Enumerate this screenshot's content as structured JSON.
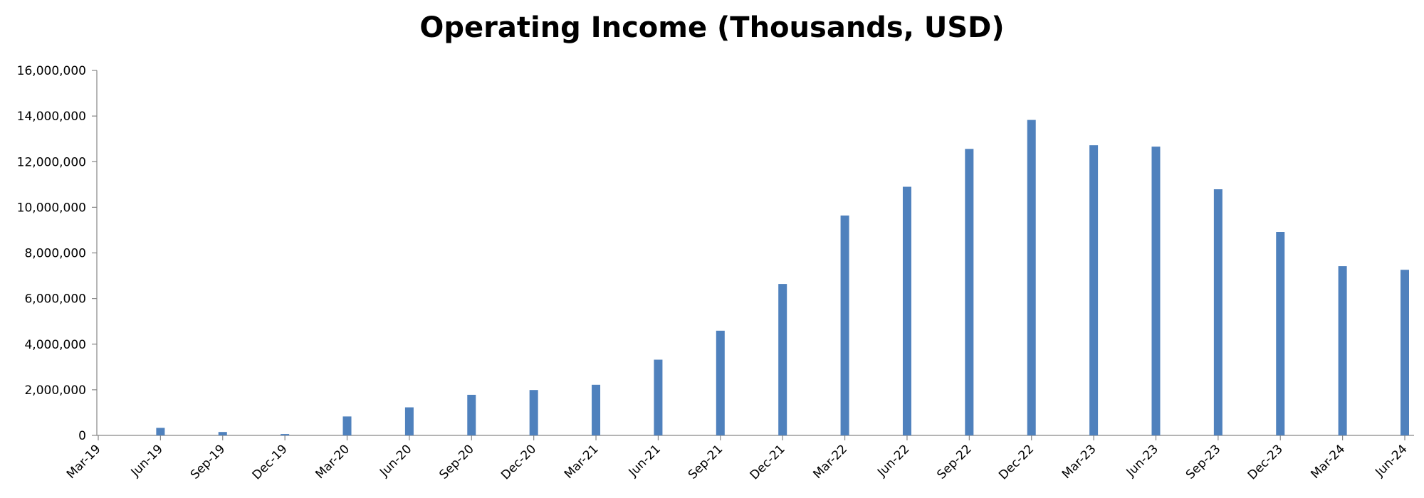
{
  "chart_data": {
    "type": "bar",
    "title": "Operating Income (Thousands, USD)",
    "xlabel": "",
    "ylabel": "",
    "categories": [
      "Mar-19",
      "Jun-19",
      "Sep-19",
      "Dec-19",
      "Mar-20",
      "Jun-20",
      "Sep-20",
      "Dec-20",
      "Mar-21",
      "Jun-21",
      "Sep-21",
      "Dec-21",
      "Mar-22",
      "Jun-22",
      "Sep-22",
      "Dec-22",
      "Mar-23",
      "Jun-23",
      "Sep-23",
      "Dec-23",
      "Mar-24",
      "Jun-24"
    ],
    "values": [
      0,
      330000,
      150000,
      60000,
      830000,
      1230000,
      1780000,
      1990000,
      2220000,
      3320000,
      4590000,
      6640000,
      9640000,
      10900000,
      12560000,
      13830000,
      12720000,
      12660000,
      10790000,
      8920000,
      7420000,
      7260000
    ],
    "ylim": [
      0,
      16000000
    ],
    "yticks": [
      0,
      2000000,
      4000000,
      6000000,
      8000000,
      10000000,
      12000000,
      14000000,
      16000000
    ],
    "ytick_labels": [
      "0",
      "2,000,000",
      "4,000,000",
      "6,000,000",
      "8,000,000",
      "10,000,000",
      "12,000,000",
      "14,000,000",
      "16,000,000"
    ],
    "grid": false,
    "legend": "none",
    "bar_color": "#4F81BD"
  }
}
